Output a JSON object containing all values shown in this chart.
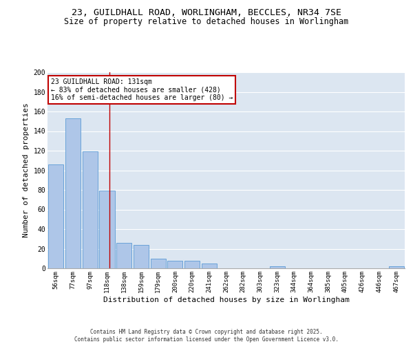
{
  "title_line1": "23, GUILDHALL ROAD, WORLINGHAM, BECCLES, NR34 7SE",
  "title_line2": "Size of property relative to detached houses in Worlingham",
  "xlabel": "Distribution of detached houses by size in Worlingham",
  "ylabel": "Number of detached properties",
  "categories": [
    "56sqm",
    "77sqm",
    "97sqm",
    "118sqm",
    "138sqm",
    "159sqm",
    "179sqm",
    "200sqm",
    "220sqm",
    "241sqm",
    "262sqm",
    "282sqm",
    "303sqm",
    "323sqm",
    "344sqm",
    "364sqm",
    "385sqm",
    "405sqm",
    "426sqm",
    "446sqm",
    "467sqm"
  ],
  "values": [
    106,
    153,
    119,
    79,
    26,
    24,
    10,
    8,
    8,
    5,
    0,
    0,
    0,
    2,
    0,
    0,
    0,
    0,
    0,
    0,
    2
  ],
  "bar_color": "#aec6e8",
  "bar_edge_color": "#5b9bd5",
  "bg_color": "#dce6f1",
  "grid_color": "#ffffff",
  "annotation_box_color": "#c00000",
  "annotation_text": "23 GUILDHALL ROAD: 131sqm\n← 83% of detached houses are smaller (428)\n16% of semi-detached houses are larger (80) →",
  "ylim": [
    0,
    200
  ],
  "yticks": [
    0,
    20,
    40,
    60,
    80,
    100,
    120,
    140,
    160,
    180,
    200
  ],
  "footer": "Contains HM Land Registry data © Crown copyright and database right 2025.\nContains public sector information licensed under the Open Government Licence v3.0.",
  "title_fontsize": 9.5,
  "subtitle_fontsize": 8.5,
  "tick_fontsize": 6.5,
  "ylabel_fontsize": 8,
  "xlabel_fontsize": 8,
  "annotation_fontsize": 7,
  "footer_fontsize": 5.5
}
